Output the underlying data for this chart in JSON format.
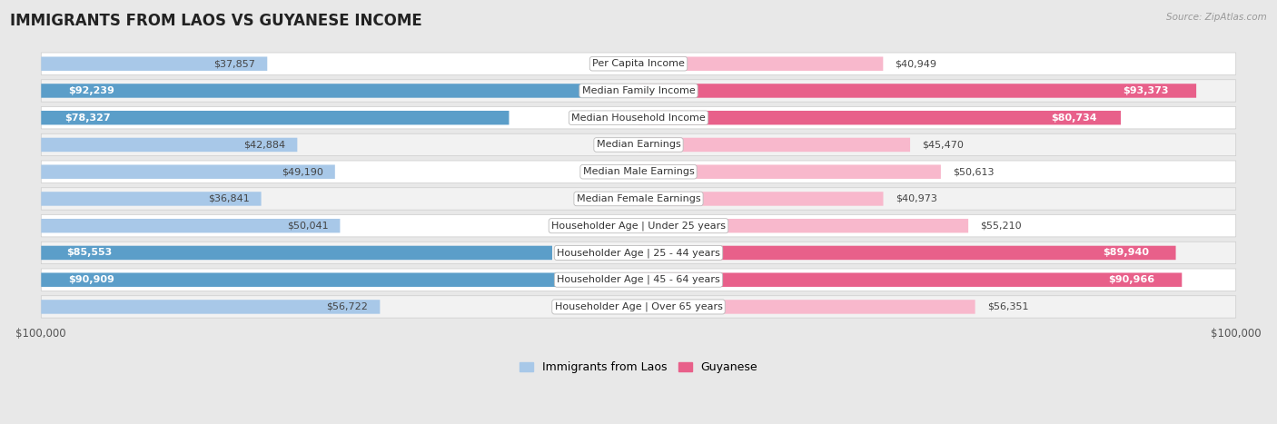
{
  "title": "IMMIGRANTS FROM LAOS VS GUYANESE INCOME",
  "source": "Source: ZipAtlas.com",
  "categories": [
    "Per Capita Income",
    "Median Family Income",
    "Median Household Income",
    "Median Earnings",
    "Median Male Earnings",
    "Median Female Earnings",
    "Householder Age | Under 25 years",
    "Householder Age | 25 - 44 years",
    "Householder Age | 45 - 64 years",
    "Householder Age | Over 65 years"
  ],
  "laos_values": [
    37857,
    92239,
    78327,
    42884,
    49190,
    36841,
    50041,
    85553,
    90909,
    56722
  ],
  "guyanese_values": [
    40949,
    93373,
    80734,
    45470,
    50613,
    40973,
    55210,
    89940,
    90966,
    56351
  ],
  "laos_labels": [
    "$37,857",
    "$92,239",
    "$78,327",
    "$42,884",
    "$49,190",
    "$36,841",
    "$50,041",
    "$85,553",
    "$90,909",
    "$56,722"
  ],
  "guyanese_labels": [
    "$40,949",
    "$93,373",
    "$80,734",
    "$45,470",
    "$50,613",
    "$40,973",
    "$55,210",
    "$89,940",
    "$90,966",
    "$56,351"
  ],
  "max_value": 100000,
  "laos_color_light": "#a8c8e8",
  "laos_color_dark": "#5b9ec9",
  "guyanese_color_light": "#f8b8cc",
  "guyanese_color_dark": "#e8608a",
  "background_color": "#e8e8e8",
  "row_bg_odd": "#f2f2f2",
  "row_bg_even": "#ffffff",
  "label_fontsize": 8.0,
  "title_fontsize": 12,
  "legend_fontsize": 9,
  "axis_fontsize": 8.5,
  "laos_threshold": 60000,
  "guyanese_threshold": 60000
}
